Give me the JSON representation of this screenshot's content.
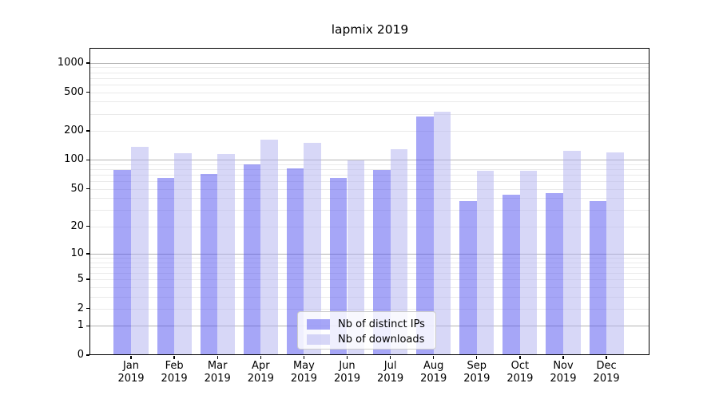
{
  "title": "lapmix 2019",
  "chart_data": {
    "type": "bar",
    "title": "lapmix 2019",
    "categories": [
      "Jan 2019",
      "Feb 2019",
      "Mar 2019",
      "Apr 2019",
      "May 2019",
      "Jun 2019",
      "Jul 2019",
      "Aug 2019",
      "Sep 2019",
      "Oct 2019",
      "Nov 2019",
      "Dec 2019"
    ],
    "series": [
      {
        "name": "Nb of distinct IPs",
        "color": "rgba(77,77,239,0.5)",
        "solid_hex": "#a6a6f7",
        "values": [
          78,
          65,
          72,
          90,
          82,
          65,
          79,
          280,
          37,
          43,
          45,
          37
        ]
      },
      {
        "name": "Nb of downloads",
        "color": "rgba(175,175,239,0.5)",
        "solid_hex": "#d7d7f7",
        "values": [
          137,
          117,
          115,
          162,
          150,
          99,
          129,
          315,
          77,
          77,
          124,
          120
        ]
      }
    ],
    "yscale": "symlog (y = ln(1+v))",
    "y_ticks": [
      1000,
      500,
      200,
      100,
      50,
      20,
      10,
      5,
      2,
      1,
      0
    ],
    "ylim": [
      0,
      1400
    ],
    "xlabel": "",
    "ylabel": "",
    "grid": "horizontal, major + minor",
    "legend_position": "lower center",
    "colors": {
      "axis": "#000000",
      "major_grid": "#b3b3b3",
      "minor_grid": "#eaeaea",
      "legend_border": "#cccccc",
      "background": "#ffffff"
    }
  }
}
